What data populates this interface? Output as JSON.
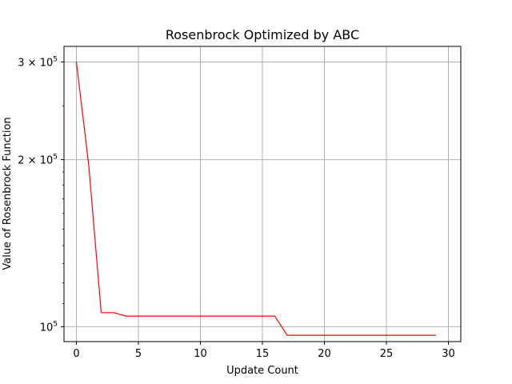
{
  "chart_data": {
    "type": "line",
    "title": "Rosenbrock Optimized by ABC",
    "xlabel": "Update Count",
    "ylabel": "Value of Rosenbrock Function",
    "xlim": [
      -1,
      31
    ],
    "ylim": [
      94000,
      320000
    ],
    "yscale": "log",
    "x_ticks": [
      0,
      5,
      10,
      15,
      20,
      25,
      30
    ],
    "x_tick_labels": [
      "0",
      "5",
      "10",
      "15",
      "20",
      "25",
      "30"
    ],
    "y_ticks": [
      100000,
      200000,
      300000
    ],
    "y_tick_mantissa": [
      "10",
      "2 × 10",
      "3 × 10"
    ],
    "y_tick_exponent": "5",
    "grid": "vertical at x-ticks, horizontal at labeled y-ticks",
    "legend": "none",
    "series": [
      {
        "color": "#ff0000",
        "x": [
          0,
          1,
          2,
          3,
          4,
          5,
          6,
          7,
          8,
          9,
          10,
          11,
          12,
          13,
          14,
          15,
          16,
          17,
          18,
          19,
          20,
          21,
          22,
          23,
          24,
          25,
          26,
          27,
          28,
          29
        ],
        "values": [
          300000,
          195000,
          106000,
          106000,
          104500,
          104500,
          104500,
          104500,
          104500,
          104500,
          104500,
          104500,
          104500,
          104500,
          104500,
          104500,
          104500,
          96500,
          96500,
          96500,
          96500,
          96500,
          96500,
          96500,
          96500,
          96500,
          96500,
          96500,
          96500,
          96500
        ]
      }
    ]
  }
}
